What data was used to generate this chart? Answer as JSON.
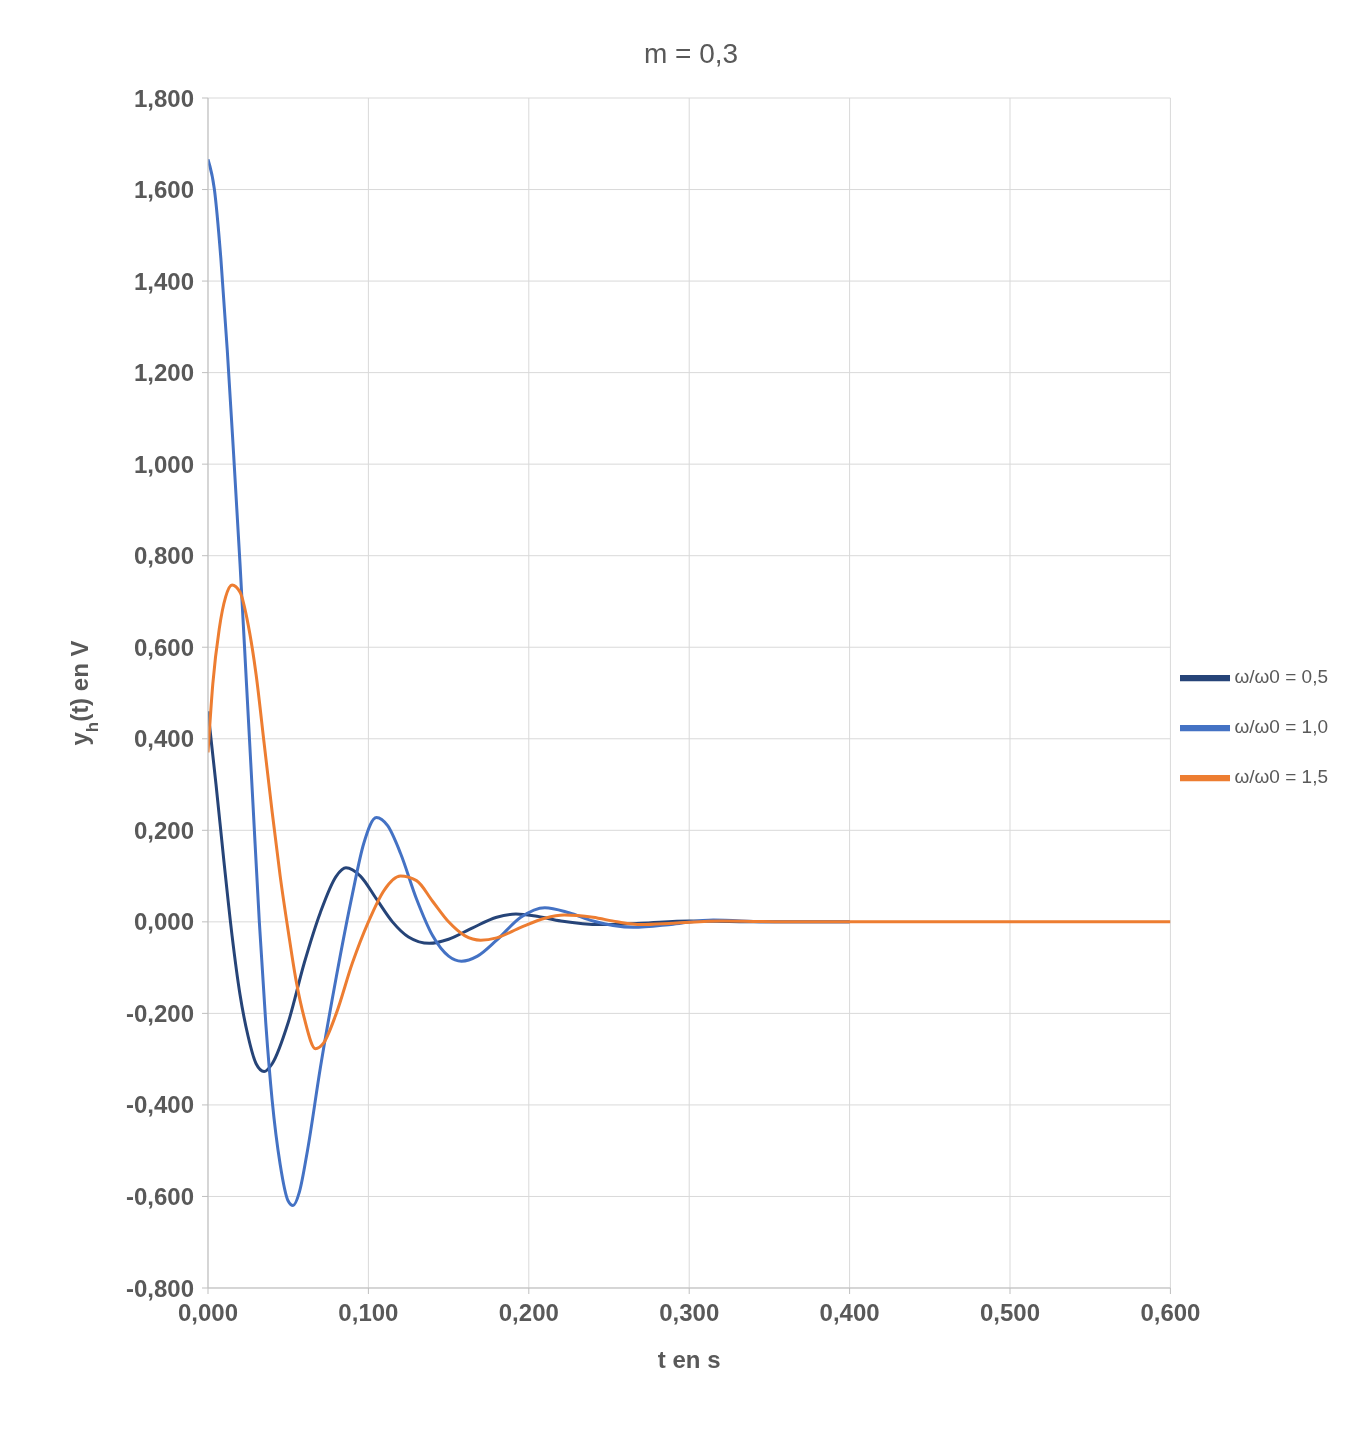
{
  "chart_data": {
    "type": "line",
    "title": "m = 0,3",
    "xlabel": "t en s",
    "ylabel": "y$_{h}$(t) en V",
    "legend": "right",
    "grid": true,
    "marker": "none",
    "line_style": "solid",
    "xlim": [
      0,
      0.6
    ],
    "ylim": [
      -0.8,
      1.8
    ],
    "xticks": [
      {
        "value": 0,
        "label": "0,000"
      },
      {
        "value": 0.1,
        "label": "0,100"
      },
      {
        "value": 0.2,
        "label": "0,200"
      },
      {
        "value": 0.3,
        "label": "0,300"
      },
      {
        "value": 0.4,
        "label": "0,400"
      },
      {
        "value": 0.5,
        "label": "0,500"
      },
      {
        "value": 0.6,
        "label": "0,600"
      }
    ],
    "yticks": [
      {
        "value": -0.8,
        "label": "-0,800"
      },
      {
        "value": -0.6,
        "label": "-0,600"
      },
      {
        "value": -0.4,
        "label": "-0,400"
      },
      {
        "value": -0.2,
        "label": "-0,200"
      },
      {
        "value": 0,
        "label": "0,000"
      },
      {
        "value": 0.2,
        "label": "0,200"
      },
      {
        "value": 0.4,
        "label": "0,400"
      },
      {
        "value": 0.6,
        "label": "0,600"
      },
      {
        "value": 0.8,
        "label": "0,800"
      },
      {
        "value": 1,
        "label": "1,000"
      },
      {
        "value": 1.2,
        "label": "1,200"
      },
      {
        "value": 1.4,
        "label": "1,400"
      },
      {
        "value": 1.6,
        "label": "1,600"
      },
      {
        "value": 1.8,
        "label": "1,800"
      }
    ],
    "series": [
      {
        "name": "ω/ω0 = 0,5",
        "color": "#264478",
        "x": [
          0,
          0.005,
          0.01,
          0.015,
          0.02,
          0.025,
          0.03,
          0.035,
          0.04,
          0.05,
          0.06,
          0.07,
          0.08,
          0.086,
          0.095,
          0.105,
          0.115,
          0.125,
          0.138,
          0.15,
          0.165,
          0.18,
          0.192,
          0.205,
          0.22,
          0.245,
          0.27,
          0.3,
          0.35,
          0.4
        ],
        "values": [
          0.46,
          0.3,
          0.13,
          -0.03,
          -0.16,
          -0.25,
          -0.31,
          -0.327,
          -0.31,
          -0.22,
          -0.09,
          0.02,
          0.1,
          0.118,
          0.1,
          0.05,
          0,
          -0.033,
          -0.047,
          -0.038,
          -0.013,
          0.01,
          0.017,
          0.012,
          0.002,
          -0.006,
          -0.003,
          0.002,
          0,
          0
        ]
      },
      {
        "name": "ω/ω0 = 1,0",
        "color": "#4472c4",
        "x": [
          0,
          0.004,
          0.008,
          0.012,
          0.016,
          0.02,
          0.024,
          0.028,
          0.032,
          0.036,
          0.04,
          0.045,
          0.05,
          0.053,
          0.057,
          0.062,
          0.07,
          0.08,
          0.09,
          0.097,
          0.105,
          0.112,
          0.12,
          0.13,
          0.14,
          0.15,
          0.158,
          0.168,
          0.18,
          0.195,
          0.21,
          0.225,
          0.24,
          0.265,
          0.29,
          0.315,
          0.35,
          0.4
        ],
        "values": [
          1.666,
          1.6,
          1.45,
          1.25,
          1.02,
          0.78,
          0.52,
          0.26,
          0,
          -0.22,
          -0.39,
          -0.53,
          -0.61,
          -0.62,
          -0.59,
          -0.5,
          -0.32,
          -0.12,
          0.06,
          0.17,
          0.228,
          0.21,
          0.15,
          0.05,
          -0.03,
          -0.075,
          -0.086,
          -0.075,
          -0.04,
          0.01,
          0.031,
          0.02,
          0.002,
          -0.012,
          -0.005,
          0.004,
          0,
          0
        ]
      },
      {
        "name": "ω/ω0 = 1,5",
        "color": "#ed7d31",
        "x": [
          0,
          0.003,
          0.007,
          0.011,
          0.015,
          0.02,
          0.025,
          0.03,
          0.035,
          0.04,
          0.045,
          0.05,
          0.055,
          0.06,
          0.067,
          0.072,
          0.08,
          0.09,
          0.1,
          0.11,
          0.12,
          0.13,
          0.14,
          0.15,
          0.16,
          0.17,
          0.18,
          0.195,
          0.21,
          0.222,
          0.24,
          0.255,
          0.27,
          0.29,
          0.32,
          0.36,
          0.4,
          0.5,
          0.6
        ],
        "values": [
          0.37,
          0.52,
          0.64,
          0.71,
          0.736,
          0.72,
          0.65,
          0.54,
          0.39,
          0.24,
          0.1,
          -0.02,
          -0.13,
          -0.21,
          -0.277,
          -0.265,
          -0.2,
          -0.09,
          0,
          0.07,
          0.1,
          0.09,
          0.045,
          0,
          -0.03,
          -0.04,
          -0.035,
          -0.012,
          0.008,
          0.015,
          0.01,
          0,
          -0.006,
          -0.003,
          0.002,
          0,
          0,
          0,
          0
        ]
      }
    ]
  }
}
